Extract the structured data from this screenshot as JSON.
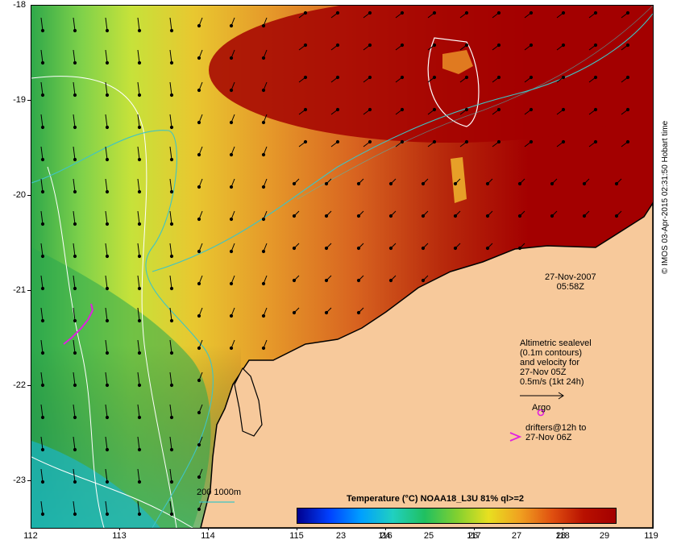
{
  "map": {
    "datetime_line1": "27-Nov-2007",
    "datetime_line2": "05:58Z",
    "x_ticks": [
      "112",
      "113",
      "114",
      "115",
      "116",
      "117",
      "118",
      "119"
    ],
    "y_ticks": [
      "-18",
      "-19",
      "-20",
      "-21",
      "-22",
      "-23"
    ],
    "altimetry_legend": [
      "Altimetric sealevel",
      "(0.1m contours)",
      "and velocity for",
      "27-Nov 05Z",
      "0.5m/s (1kt 24h)"
    ],
    "argo_label": "Argo",
    "drifter_label_1": "drifters@12h to",
    "drifter_label_2": "27-Nov 06Z",
    "contour_legend": "200  1000m",
    "colorbar_title": "Temperature (°C) NOAA18_L3U 81% ql>=2",
    "colorbar_ticks": [
      "23",
      "24",
      "25",
      "26",
      "27",
      "28",
      "29"
    ],
    "credit": "© IMOS 03-Apr-2015 02:31:50 Hobart time",
    "colors": {
      "land": "#f7c99b",
      "warm": "#a30000",
      "bathy_200": "#3fc4c4",
      "contour": "#ffffff",
      "argo": "#e020e0",
      "drifter": "#e020e0"
    }
  }
}
